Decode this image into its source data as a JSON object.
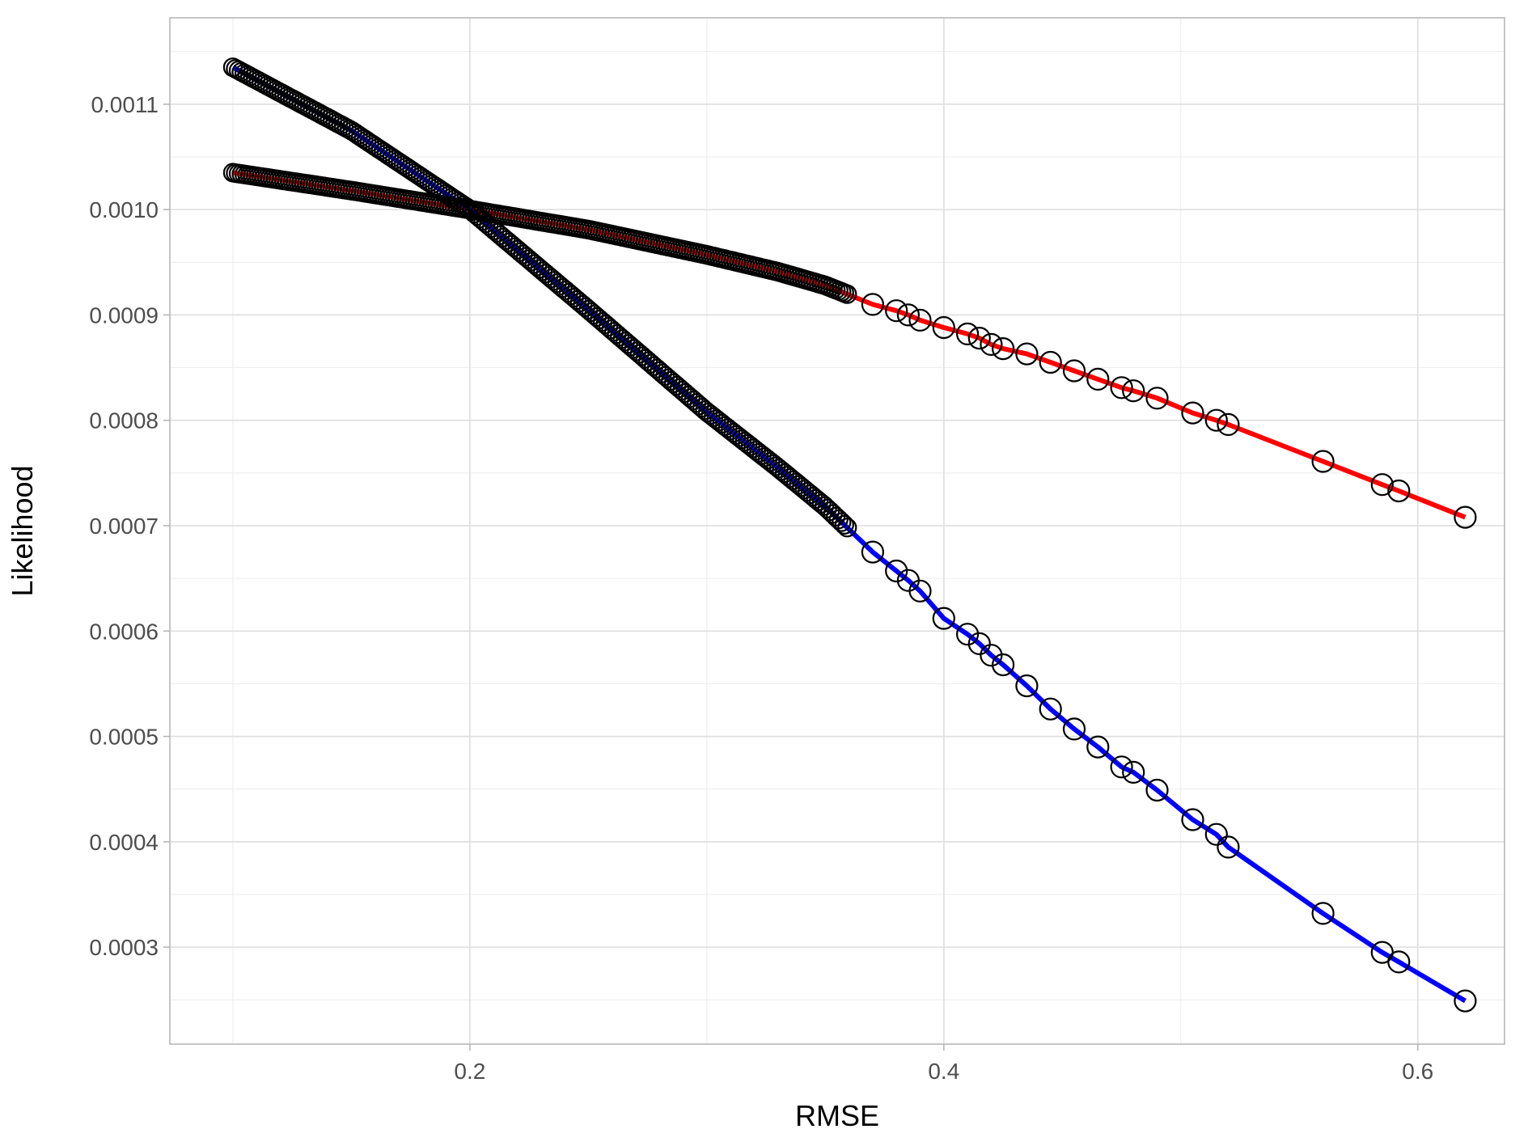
{
  "chart_data": {
    "type": "scatter",
    "title": "",
    "xlabel": "RMSE",
    "ylabel": "Likelihood",
    "xlim": [
      0.0734,
      0.6366
    ],
    "ylim": [
      0.000208,
      0.0001182
    ],
    "ylim_note": "",
    "x_ticks": [
      0.2,
      0.4,
      0.6
    ],
    "x_tick_labels": [
      "0.2",
      "0.4",
      "0.6"
    ],
    "y_ticks": [
      0.0003,
      0.0004,
      0.0005,
      0.0006,
      0.0007,
      0.0008,
      0.0009,
      0.001,
      0.0011
    ],
    "y_tick_labels": [
      "0.0003",
      "0.0004",
      "0.0005",
      "0.0006",
      "0.0007",
      "0.0008",
      "0.0009",
      "0.0010",
      "0.0011"
    ],
    "grid": true,
    "legend": "none",
    "colors": {
      "red_line": "#ff0000",
      "blue_line": "#0000ff",
      "points": "#000000",
      "grid": "#dedede",
      "panel_border": "#b3b3b3"
    },
    "series": [
      {
        "color": "#ff0000",
        "points": [
          [
            0.1,
            0.001035
          ],
          [
            0.15,
            0.001018
          ],
          [
            0.2,
            0.001
          ],
          [
            0.25,
            0.000981
          ],
          [
            0.3,
            0.000957
          ],
          [
            0.33,
            0.000941
          ],
          [
            0.35,
            0.000928
          ],
          [
            0.37,
            0.00091
          ],
          [
            0.38,
            0.000904
          ],
          [
            0.385,
            0.0009
          ],
          [
            0.39,
            0.000895
          ],
          [
            0.4,
            0.000888
          ],
          [
            0.41,
            0.000882
          ],
          [
            0.415,
            0.000878
          ],
          [
            0.42,
            0.000872
          ],
          [
            0.425,
            0.000868
          ],
          [
            0.435,
            0.000863
          ],
          [
            0.445,
            0.000855
          ],
          [
            0.455,
            0.000847
          ],
          [
            0.465,
            0.000839
          ],
          [
            0.475,
            0.000831
          ],
          [
            0.48,
            0.000828
          ],
          [
            0.49,
            0.000821
          ],
          [
            0.505,
            0.000807
          ],
          [
            0.515,
            0.0008
          ],
          [
            0.52,
            0.000796
          ],
          [
            0.56,
            0.000761
          ],
          [
            0.585,
            0.000739
          ],
          [
            0.592,
            0.000733
          ],
          [
            0.62,
            0.000708
          ]
        ]
      },
      {
        "color": "#0000ff",
        "points": [
          [
            0.1,
            0.001135
          ],
          [
            0.15,
            0.001075
          ],
          [
            0.2,
            0.001
          ],
          [
            0.25,
            0.000905
          ],
          [
            0.3,
            0.000808
          ],
          [
            0.33,
            0.000755
          ],
          [
            0.35,
            0.000718
          ],
          [
            0.37,
            0.000675
          ],
          [
            0.38,
            0.000657
          ],
          [
            0.385,
            0.000648
          ],
          [
            0.39,
            0.000638
          ],
          [
            0.4,
            0.000612
          ],
          [
            0.41,
            0.000597
          ],
          [
            0.415,
            0.000588
          ],
          [
            0.42,
            0.000577
          ],
          [
            0.425,
            0.000568
          ],
          [
            0.435,
            0.000548
          ],
          [
            0.445,
            0.000526
          ],
          [
            0.455,
            0.000507
          ],
          [
            0.465,
            0.00049
          ],
          [
            0.475,
            0.000471
          ],
          [
            0.48,
            0.000466
          ],
          [
            0.49,
            0.000449
          ],
          [
            0.505,
            0.000421
          ],
          [
            0.515,
            0.000407
          ],
          [
            0.52,
            0.000395
          ],
          [
            0.56,
            0.000332
          ],
          [
            0.585,
            0.000295
          ],
          [
            0.592,
            0.000286
          ],
          [
            0.62,
            0.000249
          ]
        ]
      }
    ]
  }
}
